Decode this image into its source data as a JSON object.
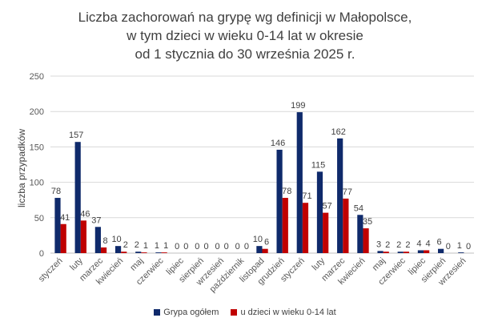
{
  "chart_data": {
    "type": "bar",
    "title_lines": [
      "Liczba zachorowań na grypę wg definicji w Małopolsce,",
      "w tym dzieci w wieku 0-14 lat w okresie",
      "od 1 stycznia do 30 września 2025 r."
    ],
    "ylabel": "liczba przypadków",
    "xlabel": "",
    "ylim": [
      0,
      250
    ],
    "yticks": [
      0,
      50,
      100,
      150,
      200,
      250
    ],
    "grid": true,
    "legend_position": "bottom",
    "categories": [
      "styczeń",
      "luty",
      "marzec",
      "kwiecień",
      "maj",
      "czerwiec",
      "lipiec",
      "sierpień",
      "wrzesień",
      "październik",
      "listopad",
      "grudzień",
      "styczeń",
      "luty",
      "marzec",
      "kwiecień",
      "maj",
      "czerwiec",
      "lipiec",
      "sierpień",
      "wrzesień"
    ],
    "series": [
      {
        "name": "Grypa ogółem",
        "color": "#0f2a6b",
        "values": [
          78,
          157,
          37,
          10,
          2,
          1,
          0,
          0,
          0,
          0,
          10,
          146,
          199,
          115,
          162,
          54,
          3,
          2,
          4,
          6,
          1
        ]
      },
      {
        "name": "u dzieci w wieku 0-14 lat",
        "color": "#c00000",
        "values": [
          41,
          46,
          8,
          2,
          1,
          1,
          0,
          0,
          0,
          0,
          6,
          78,
          71,
          57,
          77,
          35,
          2,
          2,
          4,
          0,
          0
        ]
      }
    ]
  }
}
